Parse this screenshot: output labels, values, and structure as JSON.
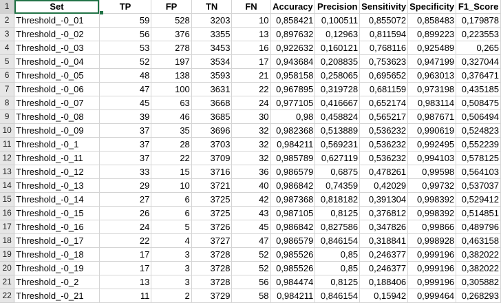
{
  "sheet": {
    "columns": [
      "Set",
      "TP",
      "FP",
      "TN",
      "FN",
      "Accuracy",
      "Precision",
      "Sensitivity",
      "Specificity",
      "F1_Score"
    ],
    "header_row_number": "1",
    "rows": [
      {
        "n": "2",
        "cells": [
          "Threshold_-0_01",
          "59",
          "528",
          "3203",
          "10",
          "0,858421",
          "0,100511",
          "0,855072",
          "0,858483",
          "0,179878"
        ]
      },
      {
        "n": "3",
        "cells": [
          "Threshold_-0_02",
          "56",
          "376",
          "3355",
          "13",
          "0,897632",
          "0,12963",
          "0,811594",
          "0,899223",
          "0,223553"
        ]
      },
      {
        "n": "4",
        "cells": [
          "Threshold_-0_03",
          "53",
          "278",
          "3453",
          "16",
          "0,922632",
          "0,160121",
          "0,768116",
          "0,925489",
          "0,265"
        ]
      },
      {
        "n": "5",
        "cells": [
          "Threshold_-0_04",
          "52",
          "197",
          "3534",
          "17",
          "0,943684",
          "0,208835",
          "0,753623",
          "0,947199",
          "0,327044"
        ]
      },
      {
        "n": "6",
        "cells": [
          "Threshold_-0_05",
          "48",
          "138",
          "3593",
          "21",
          "0,958158",
          "0,258065",
          "0,695652",
          "0,963013",
          "0,376471"
        ]
      },
      {
        "n": "7",
        "cells": [
          "Threshold_-0_06",
          "47",
          "100",
          "3631",
          "22",
          "0,967895",
          "0,319728",
          "0,681159",
          "0,973198",
          "0,435185"
        ]
      },
      {
        "n": "8",
        "cells": [
          "Threshold_-0_07",
          "45",
          "63",
          "3668",
          "24",
          "0,977105",
          "0,416667",
          "0,652174",
          "0,983114",
          "0,508475"
        ]
      },
      {
        "n": "9",
        "cells": [
          "Threshold_-0_08",
          "39",
          "46",
          "3685",
          "30",
          "0,98",
          "0,458824",
          "0,565217",
          "0,987671",
          "0,506494"
        ]
      },
      {
        "n": "10",
        "cells": [
          "Threshold_-0_09",
          "37",
          "35",
          "3696",
          "32",
          "0,982368",
          "0,513889",
          "0,536232",
          "0,990619",
          "0,524823"
        ]
      },
      {
        "n": "11",
        "cells": [
          "Threshold_-0_1",
          "37",
          "28",
          "3703",
          "32",
          "0,984211",
          "0,569231",
          "0,536232",
          "0,992495",
          "0,552239"
        ]
      },
      {
        "n": "12",
        "cells": [
          "Threshold_-0_11",
          "37",
          "22",
          "3709",
          "32",
          "0,985789",
          "0,627119",
          "0,536232",
          "0,994103",
          "0,578125"
        ]
      },
      {
        "n": "13",
        "cells": [
          "Threshold_-0_12",
          "33",
          "15",
          "3716",
          "36",
          "0,986579",
          "0,6875",
          "0,478261",
          "0,99598",
          "0,564103"
        ]
      },
      {
        "n": "14",
        "cells": [
          "Threshold_-0_13",
          "29",
          "10",
          "3721",
          "40",
          "0,986842",
          "0,74359",
          "0,42029",
          "0,99732",
          "0,537037"
        ]
      },
      {
        "n": "15",
        "cells": [
          "Threshold_-0_14",
          "27",
          "6",
          "3725",
          "42",
          "0,987368",
          "0,818182",
          "0,391304",
          "0,998392",
          "0,529412"
        ]
      },
      {
        "n": "16",
        "cells": [
          "Threshold_-0_15",
          "26",
          "6",
          "3725",
          "43",
          "0,987105",
          "0,8125",
          "0,376812",
          "0,998392",
          "0,514851"
        ]
      },
      {
        "n": "17",
        "cells": [
          "Threshold_-0_16",
          "24",
          "5",
          "3726",
          "45",
          "0,986842",
          "0,827586",
          "0,347826",
          "0,99866",
          "0,489796"
        ]
      },
      {
        "n": "18",
        "cells": [
          "Threshold_-0_17",
          "22",
          "4",
          "3727",
          "47",
          "0,986579",
          "0,846154",
          "0,318841",
          "0,998928",
          "0,463158"
        ]
      },
      {
        "n": "19",
        "cells": [
          "Threshold_-0_18",
          "17",
          "3",
          "3728",
          "52",
          "0,985526",
          "0,85",
          "0,246377",
          "0,999196",
          "0,382022"
        ]
      },
      {
        "n": "20",
        "cells": [
          "Threshold_-0_19",
          "17",
          "3",
          "3728",
          "52",
          "0,985526",
          "0,85",
          "0,246377",
          "0,999196",
          "0,382022"
        ]
      },
      {
        "n": "21",
        "cells": [
          "Threshold_-0_2",
          "13",
          "3",
          "3728",
          "56",
          "0,984474",
          "0,8125",
          "0,188406",
          "0,999196",
          "0,305882"
        ]
      },
      {
        "n": "22",
        "cells": [
          "Threshold_-0_21",
          "11",
          "2",
          "3729",
          "58",
          "0,984211",
          "0,846154",
          "0,15942",
          "0,999464",
          "0,268293"
        ]
      }
    ]
  },
  "colors": {
    "selection": "#217346",
    "row_header_bg": "#e6e6e6",
    "gridline": "#d4d4d4"
  }
}
